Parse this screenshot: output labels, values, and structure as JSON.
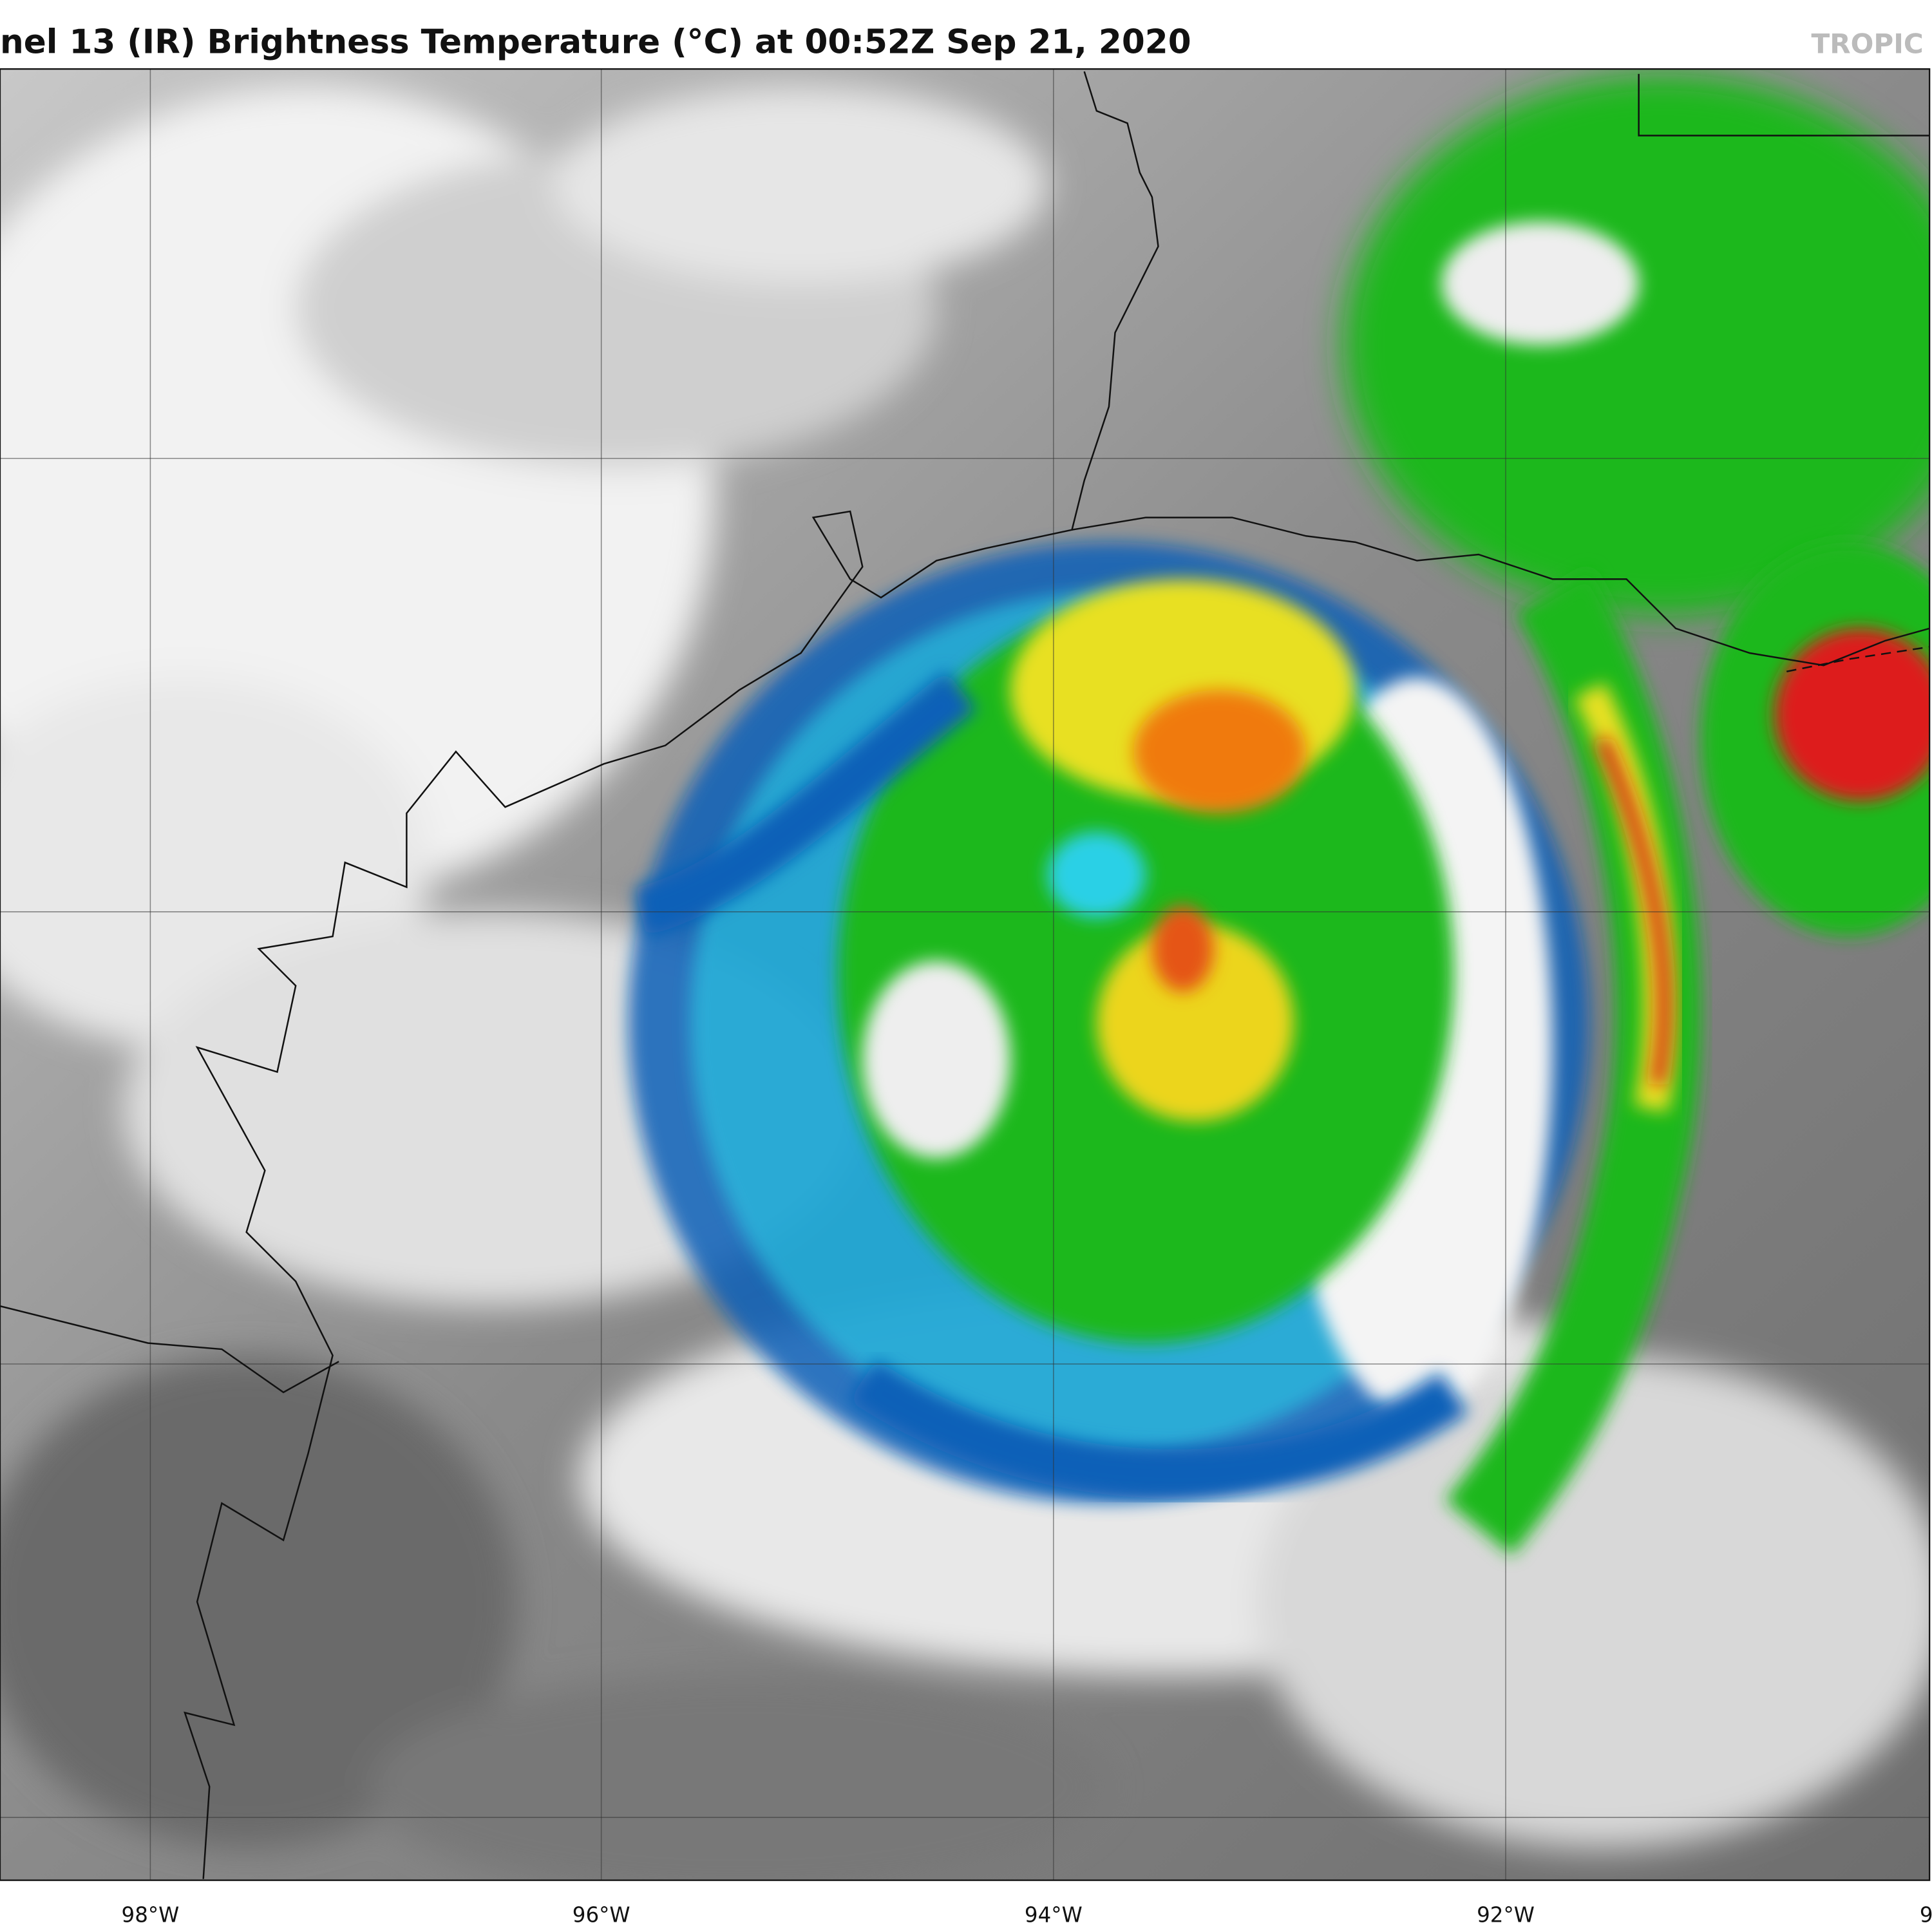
{
  "header": {
    "title": "nel 13 (IR) Brightness Temperature (°C) at 00:52Z Sep 21, 2020",
    "watermark": "TROPIC"
  },
  "map": {
    "lon_labels": [
      "98°W",
      "96°W",
      "94°W",
      "92°W",
      "9"
    ]
  }
}
